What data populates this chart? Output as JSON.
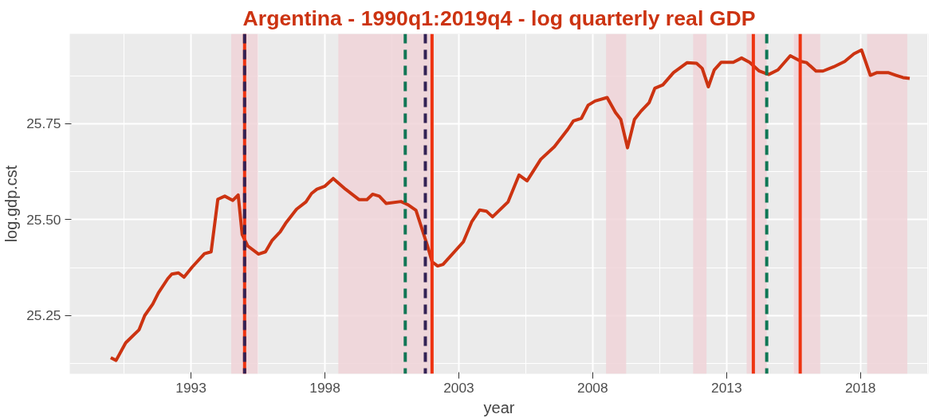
{
  "chart_data": {
    "type": "line",
    "title": "Argentina - 1990q1:2019q4 - log quarterly real GDP",
    "xlabel": "year",
    "ylabel": "log.gdp.cst",
    "xlim": [
      1988.47,
      2020.54
    ],
    "ylim": [
      25.098,
      25.984
    ],
    "xticks": [
      1993,
      1998,
      2003,
      2008,
      2013,
      2018
    ],
    "yticks": [
      {
        "value": 25.25,
        "label": "25.25"
      },
      {
        "value": 25.5,
        "label": "25.50"
      },
      {
        "value": 25.75,
        "label": "25.75"
      }
    ],
    "grid": true,
    "line_style": "solid",
    "marker": "none",
    "series": [
      {
        "color": "#cc3311",
        "x": [
          1990.0,
          1990.2,
          1990.56,
          1991.06,
          1991.27,
          1991.57,
          1991.78,
          1992.13,
          1992.28,
          1992.53,
          1992.74,
          1993.04,
          1993.5,
          1993.75,
          1994.0,
          1994.26,
          1994.56,
          1994.76,
          1994.91,
          1995.12,
          1995.52,
          1995.78,
          1996.03,
          1996.33,
          1996.53,
          1996.94,
          1997.29,
          1997.5,
          1997.7,
          1998.0,
          1998.31,
          1998.77,
          1999.27,
          1999.57,
          1999.78,
          2000.03,
          2000.29,
          2000.84,
          2001.09,
          2001.4,
          2001.85,
          2002.0,
          2002.21,
          2002.41,
          2003.17,
          2003.48,
          2003.78,
          2004.03,
          2004.26,
          2004.84,
          2005.25,
          2005.55,
          2006.06,
          2006.57,
          2007.07,
          2007.28,
          2007.58,
          2007.83,
          2008.09,
          2008.54,
          2008.85,
          2009.05,
          2009.3,
          2009.56,
          2009.81,
          2010.11,
          2010.32,
          2010.62,
          2011.02,
          2011.53,
          2011.88,
          2012.09,
          2012.32,
          2012.54,
          2012.8,
          2013.25,
          2013.56,
          2013.86,
          2014.22,
          2014.57,
          2014.92,
          2015.38,
          2015.79,
          2015.99,
          2016.34,
          2016.6,
          2017.0,
          2017.41,
          2017.76,
          2018.04,
          2018.17,
          2018.37,
          2018.62,
          2019.03,
          2019.33,
          2019.59,
          2019.84
        ],
        "values": [
          25.14,
          25.133,
          25.179,
          25.213,
          25.25,
          25.28,
          25.309,
          25.346,
          25.358,
          25.361,
          25.35,
          25.376,
          25.411,
          25.416,
          25.553,
          25.561,
          25.55,
          25.564,
          25.461,
          25.431,
          25.41,
          25.416,
          25.446,
          25.468,
          25.49,
          25.527,
          25.546,
          25.568,
          25.579,
          25.587,
          25.607,
          25.579,
          25.552,
          25.552,
          25.566,
          25.561,
          25.542,
          25.547,
          25.539,
          25.524,
          25.427,
          25.39,
          25.379,
          25.383,
          25.442,
          25.494,
          25.525,
          25.522,
          25.507,
          25.546,
          25.616,
          25.601,
          25.657,
          25.69,
          25.735,
          25.757,
          25.764,
          25.798,
          25.809,
          25.818,
          25.779,
          25.761,
          25.687,
          25.761,
          25.783,
          25.805,
          25.842,
          25.851,
          25.883,
          25.909,
          25.907,
          25.894,
          25.846,
          25.89,
          25.91,
          25.91,
          25.921,
          25.91,
          25.887,
          25.878,
          25.89,
          25.927,
          25.912,
          25.909,
          25.887,
          25.887,
          25.898,
          25.912,
          25.932,
          25.942,
          25.916,
          25.876,
          25.883,
          25.883,
          25.876,
          25.87,
          25.868
        ]
      }
    ],
    "bands": [
      {
        "axis": "x",
        "from": 1994.5,
        "to": 1995.5,
        "color": "#f0d3d8"
      },
      {
        "axis": "x",
        "from": 1998.5,
        "to": 2002.0,
        "color": "#f0d3d8"
      },
      {
        "axis": "x",
        "from": 2008.5,
        "to": 2009.25,
        "color": "#f0d3d8"
      },
      {
        "axis": "x",
        "from": 2011.75,
        "to": 2012.25,
        "color": "#f0d3d8"
      },
      {
        "axis": "x",
        "from": 2013.75,
        "to": 2014.5,
        "color": "#f0d3d8"
      },
      {
        "axis": "x",
        "from": 2015.5,
        "to": 2016.5,
        "color": "#f0d3d8"
      },
      {
        "axis": "x",
        "from": 2018.25,
        "to": 2019.75,
        "color": "#f0d3d8"
      }
    ],
    "ref_lines": [
      {
        "axis": "x",
        "value": 1995.0,
        "color": "#ee3311",
        "line_style": "solid"
      },
      {
        "axis": "x",
        "value": 1995.0,
        "color": "#332255",
        "line_style": "dashed"
      },
      {
        "axis": "x",
        "value": 2001.0,
        "color": "#117755",
        "line_style": "dashed"
      },
      {
        "axis": "x",
        "value": 2001.75,
        "color": "#332255",
        "line_style": "dashed"
      },
      {
        "axis": "x",
        "value": 2002.0,
        "color": "#ee3311",
        "line_style": "solid"
      },
      {
        "axis": "x",
        "value": 2014.0,
        "color": "#ee3311",
        "line_style": "solid"
      },
      {
        "axis": "x",
        "value": 2014.5,
        "color": "#117755",
        "line_style": "dashed"
      },
      {
        "axis": "x",
        "value": 2015.75,
        "color": "#ee3311",
        "line_style": "solid"
      }
    ]
  }
}
